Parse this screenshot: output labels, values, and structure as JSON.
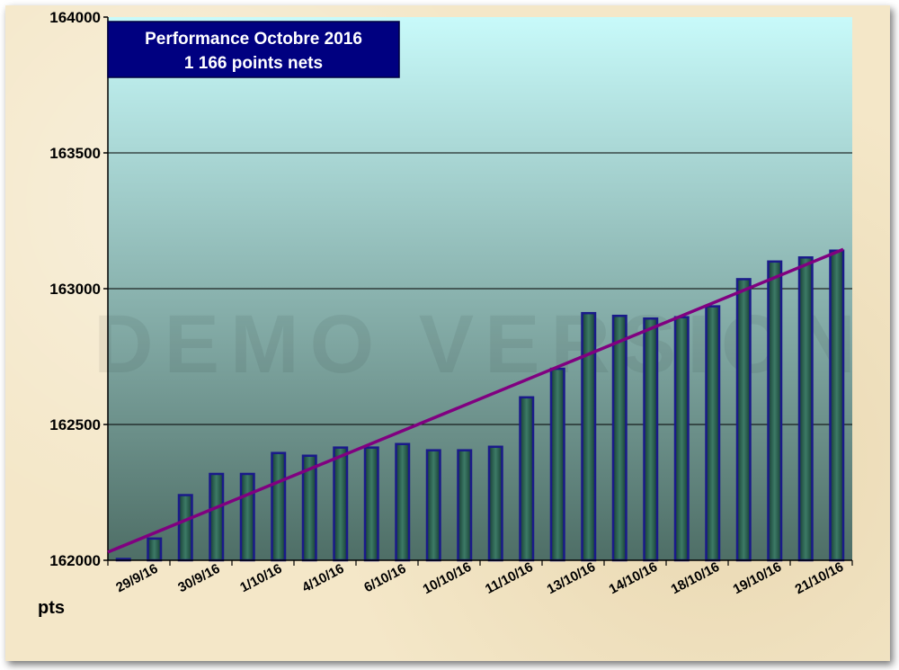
{
  "chart_data": {
    "type": "bar",
    "title": "Performance  Octobre 2016",
    "subtitle": "1 166 points nets",
    "ylabel": "pts",
    "xlabel": "",
    "ylim": [
      162000,
      164000
    ],
    "yticks": [
      162000,
      162500,
      163000,
      163500,
      164000
    ],
    "grid": true,
    "legend": "none",
    "watermark": "DEMO VERSION",
    "colors": {
      "plot_top": "#c8fafa",
      "plot_bottom": "#4e6e66",
      "bar_fill": "#1f5a4a",
      "bar_edge": "#1a1a8a",
      "trend": "#800080",
      "title_box": "#000080"
    },
    "x_tick_labels": [
      "29/9/16",
      "30/9/16",
      "1/10/16",
      "4/10/16",
      "6/10/16",
      "10/10/16",
      "11/10/16",
      "13/10/16",
      "14/10/16",
      "18/10/16",
      "19/10/16",
      "21/10/16"
    ],
    "values": [
      161998,
      162080,
      162240,
      162318,
      162318,
      162395,
      162385,
      162415,
      162415,
      162428,
      162405,
      162405,
      162418,
      162600,
      162705,
      162910,
      162900,
      162890,
      162895,
      162935,
      163035,
      163100,
      163115,
      163140
    ],
    "trend": {
      "start": 162030,
      "end": 163145
    }
  }
}
